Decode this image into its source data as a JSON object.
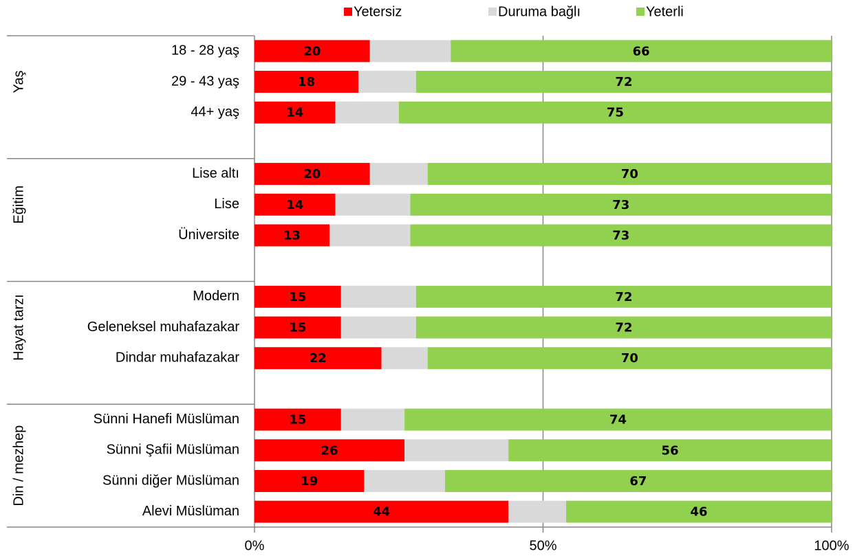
{
  "chart_data": {
    "type": "stacked_bar_horizontal",
    "groups": [
      {
        "label": "Yaş",
        "categories": [
          "18 - 28 yaş",
          "29 - 43 yaş",
          "44+ yaş"
        ]
      },
      {
        "label": "Eğitim",
        "categories": [
          "Lise altı",
          "Lise",
          "Üniversite"
        ]
      },
      {
        "label": "Hayat tarzı",
        "categories": [
          "Modern",
          "Geleneksel muhafazakar",
          "Dindar muhafazakar"
        ]
      },
      {
        "label": "Din / mezhep",
        "categories": [
          "Sünni Hanefi Müslüman",
          "Sünni Şafii Müslüman",
          "Sünni diğer Müslüman",
          "Alevi Müslüman"
        ]
      }
    ],
    "series": [
      {
        "name": "Yetersiz",
        "color": "#ff0000",
        "data_labels": true,
        "values": [
          20,
          18,
          14,
          20,
          14,
          13,
          15,
          15,
          22,
          15,
          26,
          19,
          44
        ]
      },
      {
        "name": "Duruma bağlı",
        "color": "#d9d9d9",
        "data_labels": false,
        "values": [
          14,
          10,
          11,
          10,
          13,
          14,
          13,
          13,
          8,
          11,
          18,
          14,
          10
        ]
      },
      {
        "name": "Yeterli",
        "color": "#92d050",
        "data_labels": true,
        "values": [
          66,
          72,
          75,
          70,
          73,
          73,
          72,
          72,
          70,
          74,
          56,
          67,
          46
        ]
      }
    ],
    "xlim": [
      0,
      100
    ],
    "xticks": [
      {
        "value": 0,
        "label": "0%"
      },
      {
        "value": 50,
        "label": "50%"
      },
      {
        "value": 100,
        "label": "100%"
      }
    ],
    "grid": true,
    "legend": "top"
  }
}
